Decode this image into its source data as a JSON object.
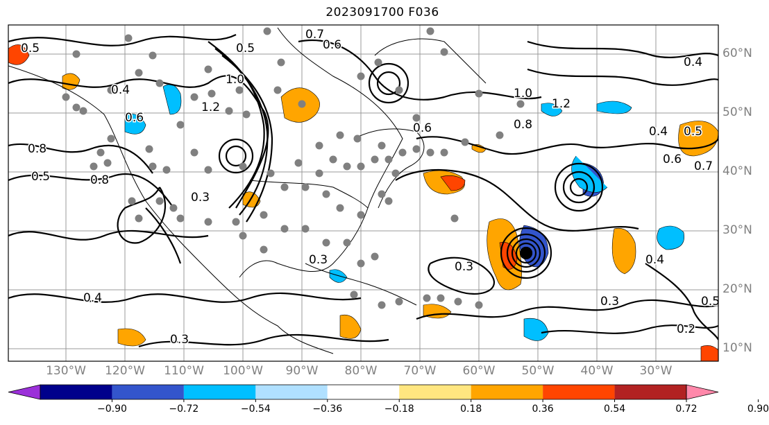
{
  "title": "2023091700 F036",
  "lat_labels": [
    "60°N",
    "50°N",
    "40°N",
    "30°N",
    "20°N",
    "10°N"
  ],
  "lon_labels": [
    "130°W",
    "120°W",
    "110°W",
    "100°W",
    "90°W",
    "80°W",
    "70°W",
    "60°W",
    "50°W",
    "40°W",
    "30°W"
  ],
  "contour_labels": [
    "0.5",
    "0.7",
    "0.6",
    "0.5",
    "1.0",
    "0.4",
    "0.6",
    "1.2",
    "0.8",
    "0.8",
    "0.6",
    "1.0",
    "1.2",
    "0.8",
    "0.4",
    "0.5",
    "0.7",
    "0.6",
    "0.5",
    "0.3",
    "0.3",
    "0.3",
    "0.3",
    "0.4",
    "0.3",
    "0.2",
    "0.4",
    "0.5",
    "0.4"
  ],
  "colorbar": {
    "ticks": [
      "−0.90",
      "−0.72",
      "−0.54",
      "−0.36",
      "−0.18",
      "0.18",
      "0.36",
      "0.54",
      "0.72",
      "0.90"
    ],
    "colors": [
      "#9b30d9",
      "#00008b",
      "#3355cc",
      "#00bfff",
      "#b0e0ff",
      "#ffffff",
      "#ffe680",
      "#ffa500",
      "#ff4500",
      "#b22222",
      "#ff88aa"
    ]
  },
  "storm_marker": "hurricane-center"
}
